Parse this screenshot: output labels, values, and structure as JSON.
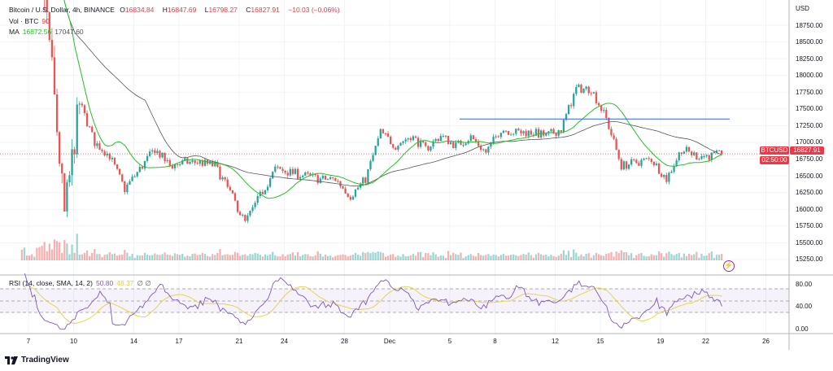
{
  "header": {
    "symbol": "Bitcoin / U.S. Dollar, 4h, BINANCE",
    "o_label": "O",
    "o": "16834.84",
    "h_label": "H",
    "h": "16847.69",
    "l_label": "L",
    "l": "16798.27",
    "c_label": "C",
    "c": "16827.91",
    "change": "−10.03 (−0.06%)",
    "vol_label": "Vol · BTC",
    "vol": "90",
    "ma_label": "MA",
    "ma_fast": "16872.56",
    "ma_slow": "17047.60"
  },
  "rsi": {
    "label": "RSI (14, close, SMA, 14, 2)",
    "value": "50.80",
    "sma": "48.37",
    "icons": "∅ ∅",
    "ticks": [
      "80.00",
      "40.00",
      "0.00"
    ]
  },
  "price_axis": {
    "unit": "USD",
    "ticks": [
      "18750.00",
      "18500.00",
      "18250.00",
      "18000.00",
      "17750.00",
      "17500.00",
      "17250.00",
      "17000.00",
      "16750.00",
      "16500.00",
      "16250.00",
      "16000.00",
      "15750.00",
      "15500.00",
      "15250.00"
    ]
  },
  "badge": {
    "ticker": "BTCUSD",
    "price": "16827.91",
    "countdown": "02:50:00"
  },
  "time_axis": [
    "7",
    "10",
    "14",
    "17",
    "21",
    "24",
    "28",
    "Dec",
    "5",
    "8",
    "12",
    "15",
    "19",
    "22",
    "26"
  ],
  "brand": "TradingView",
  "colors": {
    "up": "#26a69a",
    "down": "#ef5350",
    "ma_fast": "#22c322",
    "ma_slow": "#555555",
    "rsi": "#7e57c2",
    "rsi_sma": "#e6d13a",
    "hline": "#2962ff"
  },
  "chart_data": {
    "type": "candlestick",
    "interval": "4h",
    "start": "Nov 7",
    "daily_close": [
      20500,
      18500,
      15900,
      17600,
      17000,
      16800,
      16300,
      16600,
      16900,
      16650,
      16700,
      16700,
      16650,
      16250,
      15800,
      16200,
      16600,
      16550,
      16500,
      16450,
      16450,
      16200,
      16450,
      17150,
      16950,
      17100,
      16900,
      17100,
      16950,
      17080,
      16850,
      17200,
      17150,
      17150,
      17100,
      17200,
      17800,
      17800,
      17350,
      16650,
      16700,
      16750,
      16450,
      16900,
      16800,
      16800,
      16828
    ],
    "hline_price": 17350,
    "last_price": 16827.91
  }
}
